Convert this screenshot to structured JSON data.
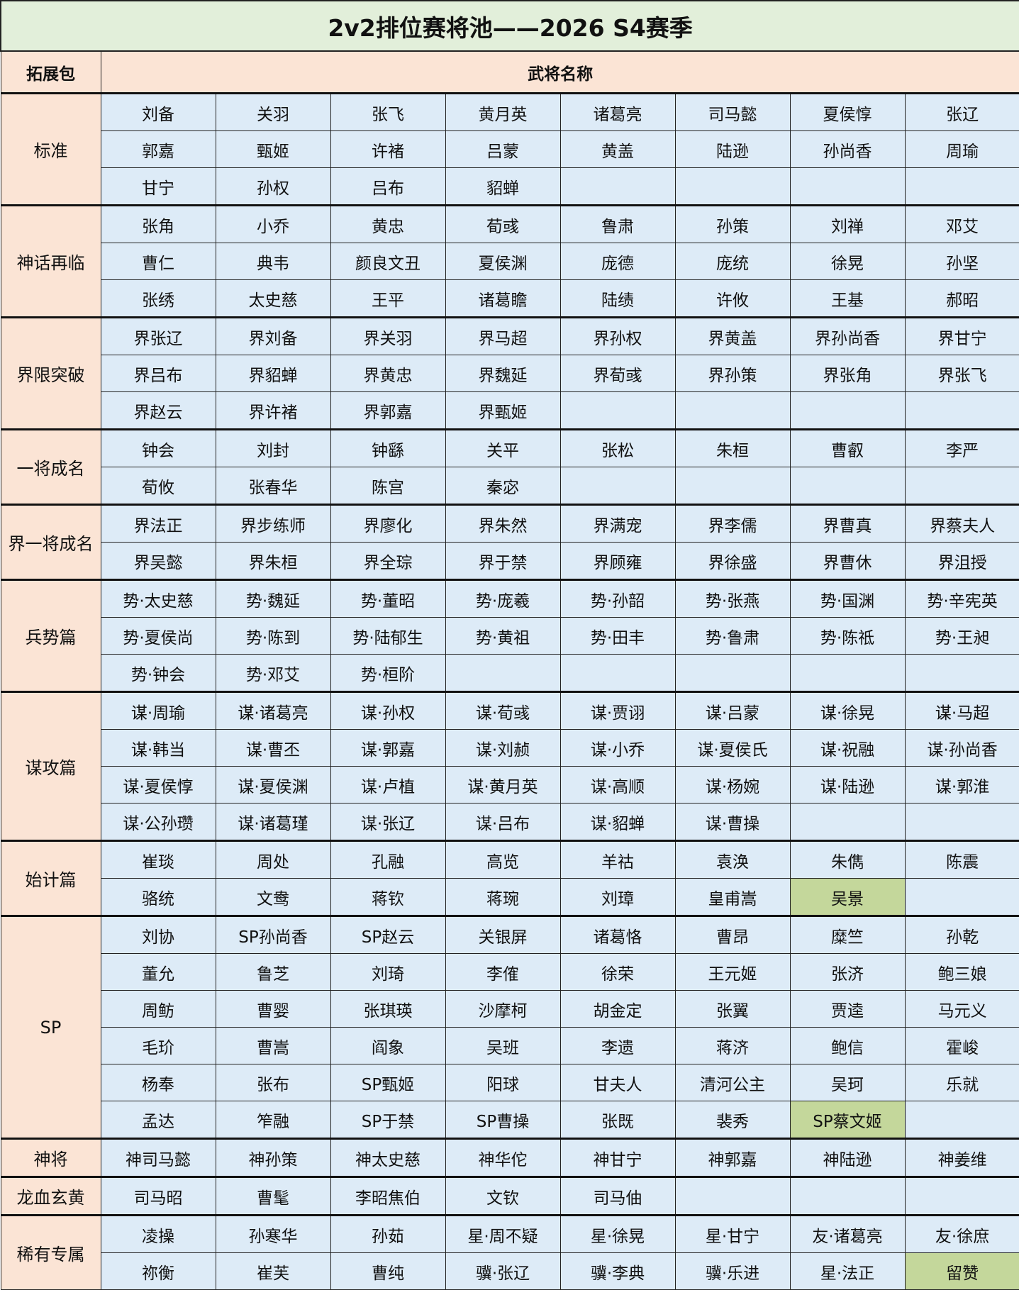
{
  "title": "2v2排位赛将池——2026 S4赛季",
  "header": {
    "pack": "拓展包",
    "names": "武将名称"
  },
  "colors": {
    "title_bg": "#e2efda",
    "header_bg": "#fbe4d5",
    "cell_bg": "#ddebf7",
    "highlight_bg": "#c4d79b"
  },
  "groups": [
    {
      "name": "标准",
      "rows": [
        [
          "刘备",
          "关羽",
          "张飞",
          "黄月英",
          "诸葛亮",
          "司马懿",
          "夏侯惇",
          "张辽"
        ],
        [
          "郭嘉",
          "甄姬",
          "许褚",
          "吕蒙",
          "黄盖",
          "陆逊",
          "孙尚香",
          "周瑜"
        ],
        [
          "甘宁",
          "孙权",
          "吕布",
          "貂蝉",
          "",
          "",
          "",
          ""
        ]
      ]
    },
    {
      "name": "神话再临",
      "rows": [
        [
          "张角",
          "小乔",
          "黄忠",
          "荀彧",
          "鲁肃",
          "孙策",
          "刘禅",
          "邓艾"
        ],
        [
          "曹仁",
          "典韦",
          "颜良文丑",
          "夏侯渊",
          "庞德",
          "庞统",
          "徐晃",
          "孙坚"
        ],
        [
          "张绣",
          "太史慈",
          "王平",
          "诸葛瞻",
          "陆绩",
          "许攸",
          "王基",
          "郝昭"
        ]
      ]
    },
    {
      "name": "界限突破",
      "rows": [
        [
          "界张辽",
          "界刘备",
          "界关羽",
          "界马超",
          "界孙权",
          "界黄盖",
          "界孙尚香",
          "界甘宁"
        ],
        [
          "界吕布",
          "界貂蝉",
          "界黄忠",
          "界魏延",
          "界荀彧",
          "界孙策",
          "界张角",
          "界张飞"
        ],
        [
          "界赵云",
          "界许褚",
          "界郭嘉",
          "界甄姬",
          "",
          "",
          "",
          ""
        ]
      ]
    },
    {
      "name": "一将成名",
      "rows": [
        [
          "钟会",
          "刘封",
          "钟繇",
          "关平",
          "张松",
          "朱桓",
          "曹叡",
          "李严"
        ],
        [
          "荀攸",
          "张春华",
          "陈宫",
          "秦宓",
          "",
          "",
          "",
          ""
        ]
      ]
    },
    {
      "name": "界一将成名",
      "rows": [
        [
          "界法正",
          "界步练师",
          "界廖化",
          "界朱然",
          "界满宠",
          "界李儒",
          "界曹真",
          "界蔡夫人"
        ],
        [
          "界吴懿",
          "界朱桓",
          "界全琮",
          "界于禁",
          "界顾雍",
          "界徐盛",
          "界曹休",
          "界沮授"
        ]
      ]
    },
    {
      "name": "兵势篇",
      "rows": [
        [
          "势·太史慈",
          "势·魏延",
          "势·董昭",
          "势·庞羲",
          "势·孙韶",
          "势·张燕",
          "势·国渊",
          "势·辛宪英"
        ],
        [
          "势·夏侯尚",
          "势·陈到",
          "势·陆郁生",
          "势·黄祖",
          "势·田丰",
          "势·鲁肃",
          "势·陈祗",
          "势·王昶"
        ],
        [
          "势·钟会",
          "势·邓艾",
          "势·桓阶",
          "",
          "",
          "",
          "",
          ""
        ]
      ]
    },
    {
      "name": "谋攻篇",
      "rows": [
        [
          "谋·周瑜",
          "谋·诸葛亮",
          "谋·孙权",
          "谋·荀彧",
          "谋·贾诩",
          "谋·吕蒙",
          "谋·徐晃",
          "谋·马超"
        ],
        [
          "谋·韩当",
          "谋·曹丕",
          "谋·郭嘉",
          "谋·刘赪",
          "谋·小乔",
          "谋·夏侯氏",
          "谋·祝融",
          "谋·孙尚香"
        ],
        [
          "谋·夏侯惇",
          "谋·夏侯渊",
          "谋·卢植",
          "谋·黄月英",
          "谋·高顺",
          "谋·杨婉",
          "谋·陆逊",
          "谋·郭淮"
        ],
        [
          "谋·公孙瓒",
          "谋·诸葛瑾",
          "谋·张辽",
          "谋·吕布",
          "谋·貂蝉",
          "谋·曹操",
          "",
          ""
        ]
      ]
    },
    {
      "name": "始计篇",
      "rows": [
        [
          "崔琰",
          "周处",
          "孔融",
          "高览",
          "羊祜",
          "袁涣",
          "朱儁",
          "陈震"
        ],
        [
          "骆统",
          "文鸯",
          "蒋钦",
          "蒋琬",
          "刘璋",
          "皇甫嵩",
          "吴景",
          ""
        ]
      ],
      "highlight": [
        [
          1,
          6
        ]
      ]
    },
    {
      "name": "SP",
      "rows": [
        [
          "刘协",
          "SP孙尚香",
          "SP赵云",
          "关银屏",
          "诸葛恪",
          "曹昂",
          "糜竺",
          "孙乾"
        ],
        [
          "董允",
          "鲁芝",
          "刘琦",
          "李傕",
          "徐荣",
          "王元姬",
          "张济",
          "鲍三娘"
        ],
        [
          "周鲂",
          "曹婴",
          "张琪瑛",
          "沙摩柯",
          "胡金定",
          "张翼",
          "贾逵",
          "马元义"
        ],
        [
          "毛玠",
          "曹嵩",
          "阎象",
          "吴班",
          "李遗",
          "蒋济",
          "鲍信",
          "霍峻"
        ],
        [
          "杨奉",
          "张布",
          "SP甄姬",
          "阳球",
          "甘夫人",
          "清河公主",
          "吴珂",
          "乐就"
        ],
        [
          "孟达",
          "笮融",
          "SP于禁",
          "SP曹操",
          "张既",
          "裴秀",
          "SP蔡文姬",
          ""
        ]
      ],
      "highlight": [
        [
          5,
          6
        ]
      ]
    },
    {
      "name": "神将",
      "rows": [
        [
          "神司马懿",
          "神孙策",
          "神太史慈",
          "神华佗",
          "神甘宁",
          "神郭嘉",
          "神陆逊",
          "神姜维"
        ]
      ]
    },
    {
      "name": "龙血玄黄",
      "rows": [
        [
          "司马昭",
          "曹髦",
          "李昭焦伯",
          "文钦",
          "司马伷",
          "",
          "",
          ""
        ]
      ]
    },
    {
      "name": "稀有专属",
      "rows": [
        [
          "凌操",
          "孙寒华",
          "孙茹",
          "星·周不疑",
          "星·徐晃",
          "星·甘宁",
          "友·诸葛亮",
          "友·徐庶"
        ],
        [
          "祢衡",
          "崔芙",
          "曹纯",
          "骥·张辽",
          "骥·李典",
          "骥·乐进",
          "星·法正",
          "留赞"
        ]
      ],
      "highlight": [
        [
          1,
          7
        ]
      ]
    }
  ]
}
